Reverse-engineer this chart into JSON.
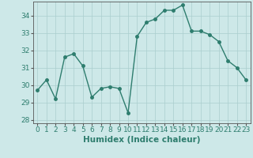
{
  "xlabel": "Humidex (Indice chaleur)",
  "x": [
    0,
    1,
    2,
    3,
    4,
    5,
    6,
    7,
    8,
    9,
    10,
    11,
    12,
    13,
    14,
    15,
    16,
    17,
    18,
    19,
    20,
    21,
    22,
    23
  ],
  "y": [
    29.7,
    30.3,
    29.2,
    31.6,
    31.8,
    31.1,
    29.3,
    29.8,
    29.9,
    29.8,
    28.4,
    32.8,
    33.6,
    33.8,
    34.3,
    34.3,
    34.6,
    33.1,
    33.1,
    32.9,
    32.5,
    31.4,
    31.0,
    30.3
  ],
  "line_color": "#2e7d6e",
  "marker": "o",
  "markersize": 2.5,
  "linewidth": 1.0,
  "ylim": [
    27.8,
    34.8
  ],
  "xlim": [
    -0.5,
    23.5
  ],
  "yticks": [
    28,
    29,
    30,
    31,
    32,
    33,
    34
  ],
  "xticks": [
    0,
    1,
    2,
    3,
    4,
    5,
    6,
    7,
    8,
    9,
    10,
    11,
    12,
    13,
    14,
    15,
    16,
    17,
    18,
    19,
    20,
    21,
    22,
    23
  ],
  "background_color": "#cde8e8",
  "grid_color": "#aacece",
  "tick_fontsize": 6.5,
  "xlabel_fontsize": 7.5
}
